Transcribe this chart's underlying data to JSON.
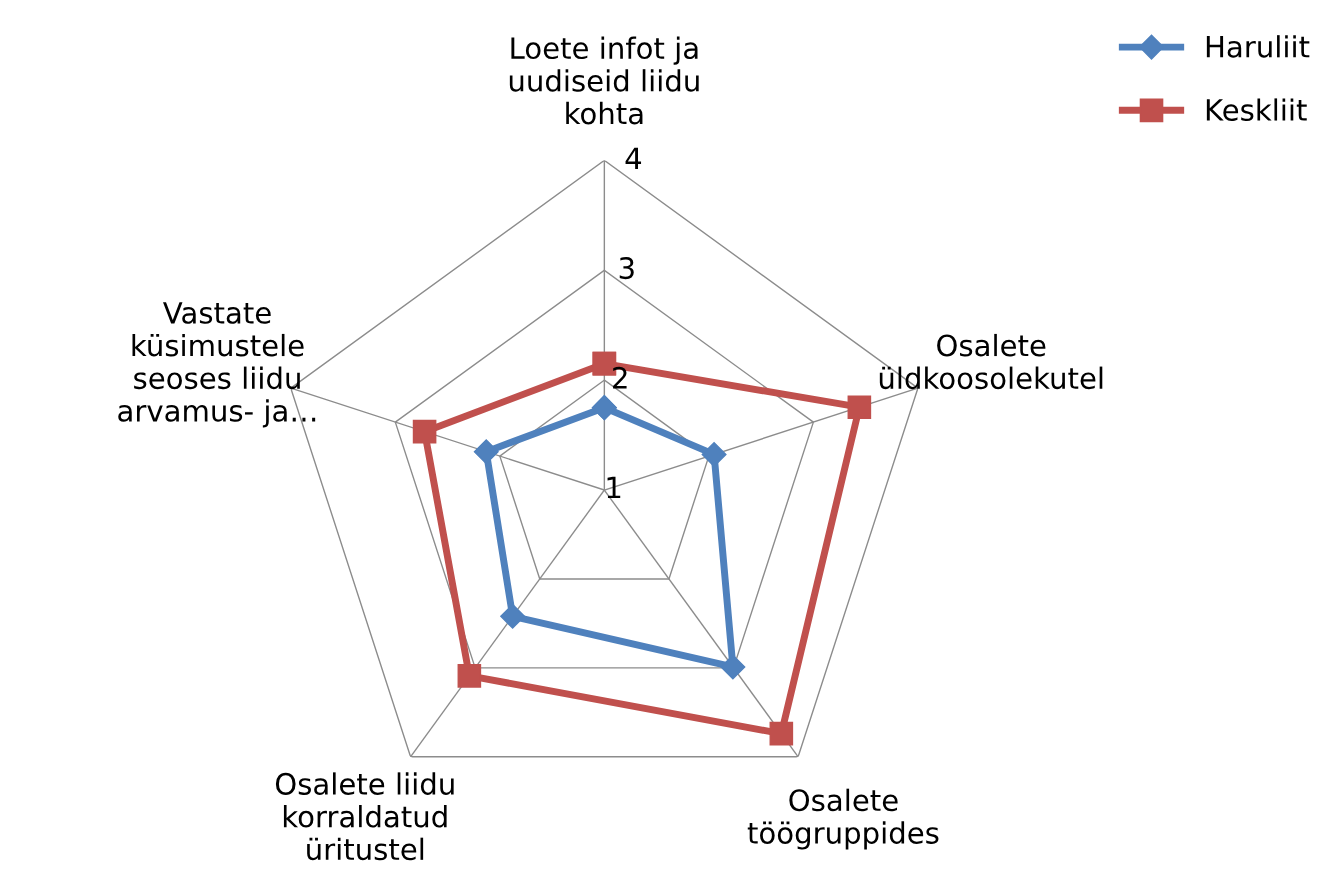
{
  "chart_data": {
    "type": "radar",
    "categories": [
      "Loete infot ja\nuudiseid liidu\nkohta",
      "Osalete\nüldkoosolekutel",
      "Osalete\ntöögruppides",
      "Osalete liidu\nkorraldatud\nüritustel",
      "Vastate\nküsimustele\nseoses liidu\narvamus- ja…"
    ],
    "series": [
      {
        "name": "Haruliit",
        "color": "#4f81bd",
        "marker": "diamond",
        "values": [
          1.75,
          2.05,
          2.99,
          2.42,
          2.13
        ]
      },
      {
        "name": "Keskliit",
        "color": "#c0504d",
        "marker": "square",
        "values": [
          2.15,
          3.44,
          3.74,
          3.09,
          2.72
        ]
      }
    ],
    "ylim": [
      1,
      4
    ],
    "yticks": [
      1,
      2,
      3,
      4
    ],
    "grid": true,
    "legend": "top right"
  }
}
